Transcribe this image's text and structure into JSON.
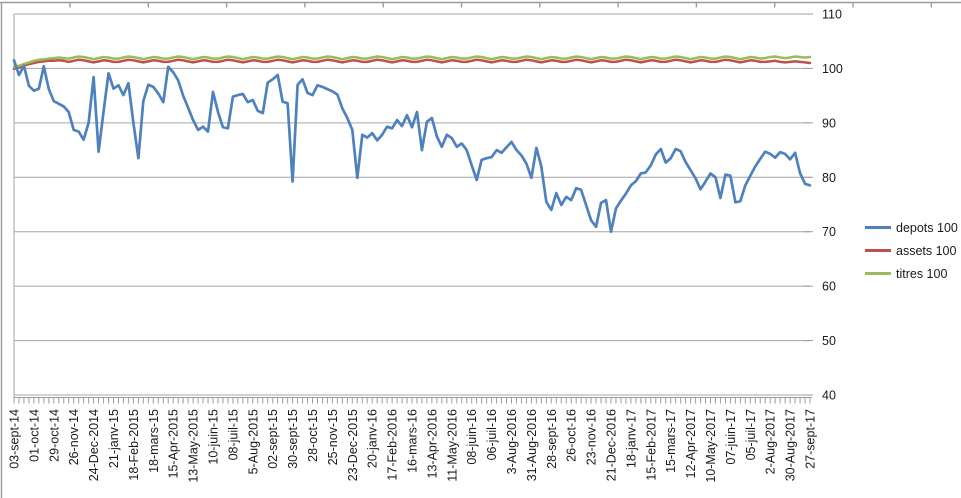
{
  "chart_data": {
    "type": "line",
    "title": "",
    "legend_position": "right",
    "grid": "horizontal",
    "ylim": [
      40,
      110
    ],
    "y_ticks": [
      110,
      100,
      90,
      80,
      70,
      60,
      50,
      40
    ],
    "label_every": 4,
    "x_labels": [
      "03-sept-14",
      "01-oct-14",
      "29-oct-14",
      "26-nov-14",
      "24-Dec-2014",
      "21-janv-15",
      "18-Feb-2015",
      "18-mars-15",
      "15-Apr-2015",
      "13-May-2015",
      "10-juin-15",
      "08-juil-15",
      "5-Aug-2015",
      "02-sept-15",
      "30-sept-15",
      "28-oct-15",
      "25-nov-15",
      "23-Dec-2015",
      "20-janv-16",
      "17-Feb-2016",
      "16-mars-16",
      "13-Apr-2016",
      "11-May-2016",
      "08-juin-16",
      "06-juil-16",
      "3-Aug-2016",
      "31-Aug-2016",
      "28-sept-16",
      "26-oct-16",
      "23-nov-16",
      "21-Dec-2016",
      "18-janv-17",
      "15-Feb-2017",
      "15-mars-17",
      "12-Apr-2017",
      "10-May-2017",
      "07-juin-17",
      "05-juil-17",
      "2-Aug-2017",
      "30-Aug-2017",
      "27-sept-17"
    ],
    "series": [
      {
        "name": "depots 100",
        "color": "#4F81BD",
        "values": [
          101.5,
          98.8,
          100.5,
          96.8,
          95.9,
          96.3,
          100.4,
          96.2,
          94.0,
          93.5,
          93.0,
          92.0,
          88.7,
          88.4,
          86.9,
          90.0,
          98.4,
          84.7,
          92.0,
          99.1,
          96.3,
          96.9,
          95.1,
          97.3,
          90.0,
          83.5,
          94.0,
          97.0,
          96.6,
          95.4,
          93.8,
          100.3,
          99.3,
          97.8,
          95.0,
          92.8,
          90.5,
          88.7,
          89.3,
          88.4,
          95.7,
          92.0,
          89.2,
          89.0,
          94.8,
          95.1,
          95.3,
          93.8,
          94.2,
          92.2,
          91.8,
          97.4,
          98.0,
          98.8,
          93.9,
          93.6,
          79.2,
          97.0,
          98.0,
          95.5,
          95.1,
          96.9,
          96.6,
          96.2,
          95.8,
          95.2,
          92.7,
          90.9,
          88.7,
          79.9,
          87.8,
          87.3,
          88.1,
          86.8,
          87.8,
          89.3,
          89.0,
          90.5,
          89.4,
          91.4,
          89.2,
          92.0,
          85.0,
          90.2,
          90.9,
          87.5,
          85.6,
          87.8,
          87.2,
          85.6,
          86.2,
          85.0,
          82.2,
          79.5,
          83.2,
          83.5,
          83.7,
          85.0,
          84.5,
          85.5,
          86.5,
          85.0,
          84.0,
          82.5,
          79.9,
          85.4,
          82.0,
          75.5,
          74.0,
          77.1,
          74.9,
          76.4,
          75.8,
          78.0,
          77.7,
          74.9,
          72.1,
          70.9,
          75.3,
          75.8,
          70.0,
          74.3,
          75.7,
          77.0,
          78.5,
          79.3,
          80.7,
          80.9,
          82.2,
          84.2,
          85.2,
          82.7,
          83.5,
          85.2,
          84.8,
          82.8,
          81.3,
          79.8,
          77.8,
          79.2,
          80.7,
          80.0,
          76.2,
          80.5,
          80.3,
          75.4,
          75.6,
          78.5,
          80.3,
          82.0,
          83.4,
          84.7,
          84.3,
          83.6,
          84.6,
          84.3,
          83.3,
          84.5,
          80.8,
          78.8,
          78.5
        ]
      },
      {
        "name": "assets 100",
        "color": "#C0504D",
        "values": [
          99.9,
          100.2,
          100.5,
          100.8,
          101.0,
          101.2,
          101.3,
          101.4,
          101.4,
          101.5,
          101.4,
          101.2,
          101.4,
          101.6,
          101.5,
          101.3,
          101.1,
          101.3,
          101.5,
          101.4,
          101.2,
          101.2,
          101.4,
          101.6,
          101.5,
          101.3,
          101.1,
          101.3,
          101.5,
          101.4,
          101.2,
          101.2,
          101.4,
          101.6,
          101.5,
          101.3,
          101.1,
          101.3,
          101.5,
          101.4,
          101.2,
          101.2,
          101.4,
          101.6,
          101.5,
          101.3,
          101.1,
          101.3,
          101.5,
          101.4,
          101.2,
          101.2,
          101.4,
          101.6,
          101.5,
          101.3,
          101.1,
          101.3,
          101.5,
          101.4,
          101.2,
          101.2,
          101.4,
          101.6,
          101.5,
          101.3,
          101.1,
          101.3,
          101.5,
          101.4,
          101.2,
          101.2,
          101.4,
          101.6,
          101.5,
          101.3,
          101.1,
          101.3,
          101.5,
          101.4,
          101.2,
          101.2,
          101.4,
          101.6,
          101.5,
          101.3,
          101.1,
          101.3,
          101.5,
          101.4,
          101.2,
          101.2,
          101.4,
          101.6,
          101.5,
          101.3,
          101.1,
          101.3,
          101.5,
          101.4,
          101.2,
          101.2,
          101.4,
          101.6,
          101.5,
          101.3,
          101.1,
          101.3,
          101.5,
          101.4,
          101.2,
          101.2,
          101.4,
          101.6,
          101.5,
          101.3,
          101.1,
          101.3,
          101.5,
          101.4,
          101.2,
          101.2,
          101.4,
          101.6,
          101.5,
          101.3,
          101.1,
          101.3,
          101.5,
          101.4,
          101.2,
          101.2,
          101.4,
          101.6,
          101.5,
          101.3,
          101.1,
          101.3,
          101.5,
          101.4,
          101.2,
          101.2,
          101.4,
          101.6,
          101.5,
          101.3,
          101.1,
          101.3,
          101.5,
          101.4,
          101.2,
          101.2,
          101.3,
          101.4,
          101.2,
          101.1,
          101.2,
          101.3,
          101.2,
          101.1,
          101.0
        ]
      },
      {
        "name": "titres 100",
        "color": "#9BBB59",
        "values": [
          100.2,
          100.5,
          100.8,
          101.1,
          101.4,
          101.6,
          101.7,
          101.8,
          101.9,
          102.0,
          101.9,
          101.8,
          102.0,
          102.2,
          102.1,
          101.9,
          101.7,
          101.9,
          102.1,
          102.0,
          101.8,
          101.8,
          102.0,
          102.2,
          102.1,
          101.9,
          101.7,
          101.9,
          102.1,
          102.0,
          101.8,
          101.8,
          102.0,
          102.2,
          102.1,
          101.9,
          101.7,
          101.9,
          102.1,
          102.0,
          101.8,
          101.8,
          102.0,
          102.2,
          102.1,
          101.9,
          101.7,
          101.9,
          102.1,
          102.0,
          101.8,
          101.8,
          102.0,
          102.2,
          102.1,
          101.9,
          101.7,
          101.9,
          102.1,
          102.0,
          101.8,
          101.8,
          102.0,
          102.2,
          102.1,
          101.9,
          101.7,
          101.9,
          102.1,
          102.0,
          101.8,
          101.8,
          102.0,
          102.2,
          102.1,
          101.9,
          101.7,
          101.9,
          102.1,
          102.0,
          101.8,
          101.8,
          102.0,
          102.2,
          102.1,
          101.9,
          101.7,
          101.9,
          102.1,
          102.0,
          101.8,
          101.8,
          102.0,
          102.2,
          102.1,
          101.9,
          101.7,
          101.9,
          102.1,
          102.0,
          101.8,
          101.8,
          102.0,
          102.2,
          102.1,
          101.9,
          101.7,
          101.9,
          102.1,
          102.0,
          101.8,
          101.8,
          102.0,
          102.2,
          102.1,
          101.9,
          101.7,
          101.9,
          102.1,
          102.0,
          101.8,
          101.8,
          102.0,
          102.2,
          102.1,
          101.9,
          101.7,
          101.9,
          102.1,
          102.0,
          101.8,
          101.8,
          102.0,
          102.2,
          102.1,
          101.9,
          101.7,
          101.9,
          102.1,
          102.0,
          101.8,
          101.8,
          102.0,
          102.2,
          102.1,
          101.9,
          101.7,
          101.9,
          102.1,
          102.0,
          101.8,
          101.9,
          102.1,
          102.2,
          102.0,
          101.9,
          102.0,
          102.2,
          102.1,
          102.0,
          102.1
        ]
      }
    ]
  }
}
